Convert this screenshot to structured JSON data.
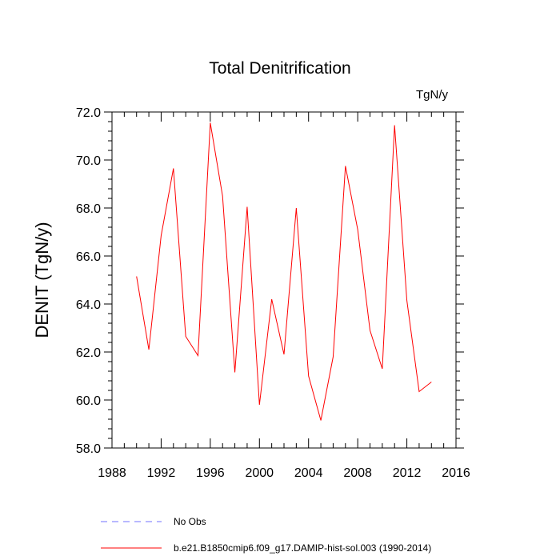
{
  "chart_data": {
    "type": "line",
    "title": "Total Denitrification",
    "units_label": "TgN/y",
    "xlabel": "",
    "ylabel": "DENIT  (TgN/y)",
    "xlim": [
      1988,
      2016
    ],
    "ylim": [
      58.0,
      72.0
    ],
    "x_ticks": [
      1988,
      1992,
      1996,
      2000,
      2004,
      2008,
      2012,
      2016
    ],
    "x_tick_labels": [
      "1988",
      "1992",
      "1996",
      "2000",
      "2004",
      "2008",
      "2012",
      "2016"
    ],
    "y_ticks": [
      58.0,
      60.0,
      62.0,
      64.0,
      66.0,
      68.0,
      70.0,
      72.0
    ],
    "y_tick_labels": [
      "58.0",
      "60.0",
      "62.0",
      "64.0",
      "66.0",
      "68.0",
      "70.0",
      "72.0"
    ],
    "grid": false,
    "legend_position": "bottom",
    "series": [
      {
        "name": "b.e21.B1850cmip6.f09_g17.DAMIP-hist-sol.003 (1990-2014)",
        "color": "#ff0000",
        "style": "solid",
        "x": [
          1990,
          1991,
          1992,
          1993,
          1994,
          1995,
          1996,
          1997,
          1998,
          1999,
          2000,
          2001,
          2002,
          2003,
          2004,
          2005,
          2006,
          2007,
          2008,
          2009,
          2010,
          2011,
          2012,
          2013,
          2014
        ],
        "y": [
          65.15,
          62.1,
          66.85,
          69.65,
          62.65,
          61.85,
          71.55,
          68.5,
          61.15,
          68.05,
          59.8,
          64.2,
          61.9,
          68.0,
          61.0,
          59.15,
          61.8,
          69.75,
          67.1,
          62.9,
          61.3,
          71.45,
          64.15,
          60.35,
          60.75
        ]
      },
      {
        "name": "No Obs",
        "color": "#7070ff",
        "style": "dashed",
        "x": [],
        "y": []
      }
    ]
  }
}
